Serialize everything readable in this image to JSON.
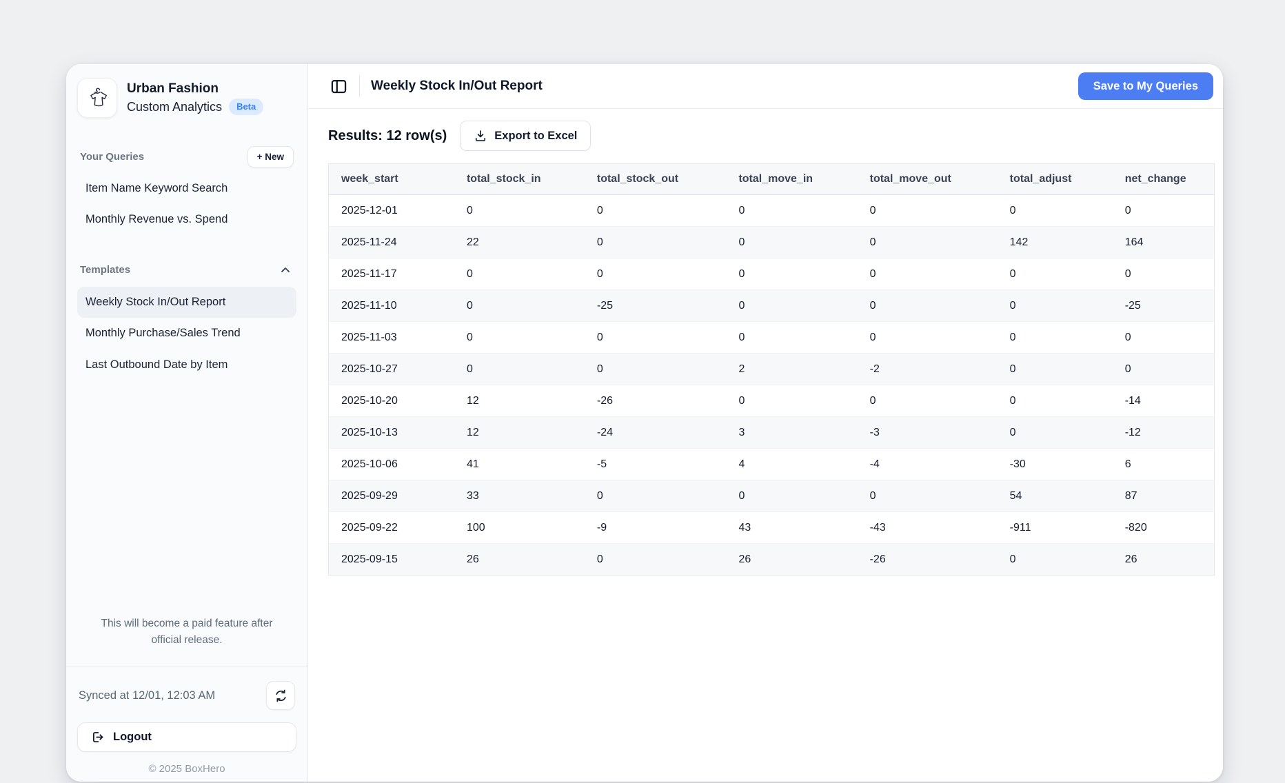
{
  "app": {
    "workspace_name": "Urban Fashion",
    "app_name": "Custom Analytics",
    "beta_badge": "Beta"
  },
  "sidebar": {
    "queries_section": {
      "label": "Your Queries",
      "new_button": "+ New",
      "items": [
        "Item Name Keyword Search",
        "Monthly Revenue vs. Spend"
      ]
    },
    "templates_section": {
      "label": "Templates",
      "selected": "Weekly Stock In/Out Report",
      "items": [
        "Weekly Stock In/Out Report",
        "Monthly Purchase/Sales Trend",
        "Last Outbound Date by Item"
      ]
    },
    "paid_notice": "This will become a paid feature after official release.",
    "synced_text": "Synced at 12/01, 12:03 AM",
    "logout_label": "Logout",
    "copyright": "© 2025 BoxHero"
  },
  "main": {
    "title": "Weekly Stock In/Out Report",
    "save_button": "Save to My Queries",
    "results_label": "Results: 12 row(s)",
    "export_button": "Export to Excel",
    "table": {
      "columns": [
        "week_start",
        "total_stock_in",
        "total_stock_out",
        "total_move_in",
        "total_move_out",
        "total_adjust",
        "net_change"
      ],
      "rows": [
        [
          "2025-12-01",
          "0",
          "0",
          "0",
          "0",
          "0",
          "0"
        ],
        [
          "2025-11-24",
          "22",
          "0",
          "0",
          "0",
          "142",
          "164"
        ],
        [
          "2025-11-17",
          "0",
          "0",
          "0",
          "0",
          "0",
          "0"
        ],
        [
          "2025-11-10",
          "0",
          "-25",
          "0",
          "0",
          "0",
          "-25"
        ],
        [
          "2025-11-03",
          "0",
          "0",
          "0",
          "0",
          "0",
          "0"
        ],
        [
          "2025-10-27",
          "0",
          "0",
          "2",
          "-2",
          "0",
          "0"
        ],
        [
          "2025-10-20",
          "12",
          "-26",
          "0",
          "0",
          "0",
          "-14"
        ],
        [
          "2025-10-13",
          "12",
          "-24",
          "3",
          "-3",
          "0",
          "-12"
        ],
        [
          "2025-10-06",
          "41",
          "-5",
          "4",
          "-4",
          "-30",
          "6"
        ],
        [
          "2025-09-29",
          "33",
          "0",
          "0",
          "0",
          "54",
          "87"
        ],
        [
          "2025-09-22",
          "100",
          "-9",
          "43",
          "-43",
          "-911",
          "-820"
        ],
        [
          "2025-09-15",
          "26",
          "0",
          "26",
          "-26",
          "0",
          "26"
        ]
      ]
    }
  },
  "icons": {
    "logo": "tshirt-on-hanger-icon",
    "sidebar_toggle": "sidebar-panel-icon",
    "templates_collapse": "chevron-up-icon",
    "export": "download-icon",
    "sync": "refresh-icon",
    "logout": "logout-icon"
  },
  "colors": {
    "accent_blue": "#4d7df2",
    "beta_badge_bg": "#dbeafe",
    "beta_badge_text": "#3b82f6",
    "sidebar_bg": "#fafbfc",
    "stripe_bg": "#f7f8fa",
    "page_bg": "#eef0f2"
  }
}
